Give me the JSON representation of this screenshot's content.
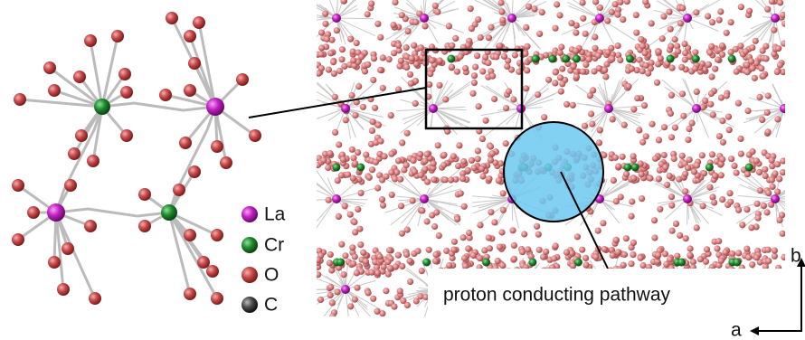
{
  "legend": [
    {
      "label": "La"
    },
    {
      "label": "Cr"
    },
    {
      "label": "O"
    },
    {
      "label": "C"
    }
  ],
  "annotation": "proton conducting pathway",
  "axes": {
    "a": "a",
    "b": "b"
  }
}
